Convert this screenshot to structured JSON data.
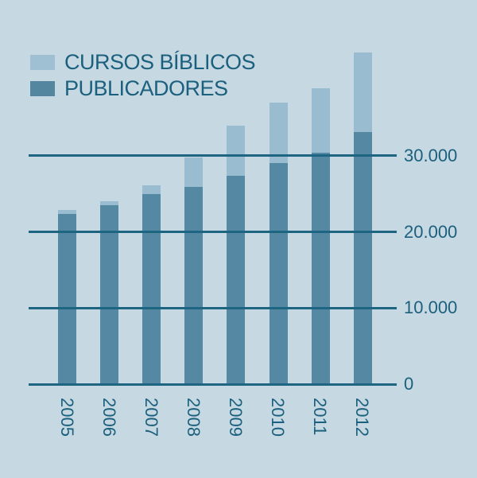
{
  "colors": {
    "background": "#c6d8e1",
    "grid_line": "#1e6581",
    "text": "#1b607e",
    "legend_swatch_cursos": "#9fc0d3",
    "legend_swatch_publicadores": "#54869f"
  },
  "legend": {
    "items": [
      {
        "label": "CURSOS BÍBLICOS",
        "color": "#9fc0d3"
      },
      {
        "label": "PUBLICADORES",
        "color": "#54869f"
      }
    ]
  },
  "chart_data": {
    "type": "bar",
    "subtype": "overlapping-bars-from-zero",
    "categories": [
      "2005",
      "2006",
      "2007",
      "2008",
      "2009",
      "2010",
      "2011",
      "2012"
    ],
    "series": [
      {
        "name": "CURSOS BÍBLICOS",
        "color": "#9abcd0",
        "values": [
          22900,
          24000,
          26100,
          29800,
          34000,
          37000,
          38900,
          43600
        ]
      },
      {
        "name": "PUBLICADORES",
        "color": "#5589a3",
        "values": [
          22400,
          23500,
          25000,
          25900,
          27400,
          29000,
          30400,
          33100
        ]
      }
    ],
    "yticks": [
      {
        "value": 30000,
        "label": "30.000"
      },
      {
        "value": 20000,
        "label": "20.000"
      },
      {
        "value": 10000,
        "label": "10.000"
      },
      {
        "value": 0,
        "label": "0"
      }
    ],
    "ylim": [
      0,
      45000
    ],
    "grid": "horizontal",
    "legend_position": "top-left",
    "title": "",
    "xlabel": "",
    "ylabel": ""
  }
}
